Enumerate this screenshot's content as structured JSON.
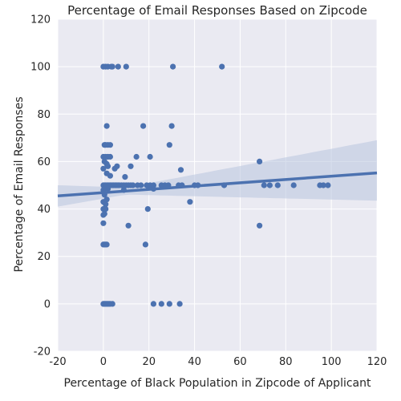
{
  "chart_data": {
    "type": "scatter",
    "title": "Percentage of Email Responses Based on Zipcode",
    "xlabel": "Percentage of Black Population in Zipcode of Applicant",
    "ylabel": "Percentage of Email Responses",
    "xlim": [
      -20,
      120
    ],
    "ylim": [
      -20,
      120
    ],
    "x_ticks": [
      "-20",
      "0",
      "20",
      "40",
      "60",
      "80",
      "100",
      "120"
    ],
    "y_ticks": [
      "-20",
      "0",
      "20",
      "40",
      "60",
      "80",
      "100",
      "120"
    ],
    "grid": true,
    "colors": {
      "background": "#eaeaf2",
      "grid": "#ffffff",
      "points": "#4c72b0",
      "band": "#b8c5df"
    },
    "points": [
      {
        "x": 0,
        "y": 100
      },
      {
        "x": 1,
        "y": 100
      },
      {
        "x": 2,
        "y": 100
      },
      {
        "x": 3.5,
        "y": 100
      },
      {
        "x": 4,
        "y": 100
      },
      {
        "x": 6.5,
        "y": 100
      },
      {
        "x": 10,
        "y": 100
      },
      {
        "x": 30.5,
        "y": 100
      },
      {
        "x": 52,
        "y": 100
      },
      {
        "x": 1.5,
        "y": 75
      },
      {
        "x": 17.5,
        "y": 75
      },
      {
        "x": 30,
        "y": 75
      },
      {
        "x": 0.5,
        "y": 67
      },
      {
        "x": 1,
        "y": 67
      },
      {
        "x": 2,
        "y": 67
      },
      {
        "x": 3,
        "y": 67
      },
      {
        "x": 29,
        "y": 67
      },
      {
        "x": 0,
        "y": 62
      },
      {
        "x": 1,
        "y": 62
      },
      {
        "x": 2,
        "y": 62
      },
      {
        "x": 3,
        "y": 62
      },
      {
        "x": 14.5,
        "y": 62
      },
      {
        "x": 20.5,
        "y": 62
      },
      {
        "x": 0.5,
        "y": 60
      },
      {
        "x": 1.5,
        "y": 59
      },
      {
        "x": 2,
        "y": 58
      },
      {
        "x": 6,
        "y": 58
      },
      {
        "x": 12,
        "y": 58
      },
      {
        "x": 68.5,
        "y": 60
      },
      {
        "x": 0,
        "y": 57
      },
      {
        "x": 5,
        "y": 57
      },
      {
        "x": 34,
        "y": 56.5
      },
      {
        "x": 1.5,
        "y": 55
      },
      {
        "x": 3,
        "y": 54
      },
      {
        "x": 9.5,
        "y": 53.5
      },
      {
        "x": 0,
        "y": 50
      },
      {
        "x": 0.5,
        "y": 50
      },
      {
        "x": 1,
        "y": 50
      },
      {
        "x": 1.5,
        "y": 50
      },
      {
        "x": 2,
        "y": 50
      },
      {
        "x": 2.5,
        "y": 50
      },
      {
        "x": 3,
        "y": 50
      },
      {
        "x": 3.5,
        "y": 50
      },
      {
        "x": 4,
        "y": 50
      },
      {
        "x": 4.5,
        "y": 50
      },
      {
        "x": 5,
        "y": 50
      },
      {
        "x": 5.5,
        "y": 50
      },
      {
        "x": 6,
        "y": 50
      },
      {
        "x": 6.5,
        "y": 50
      },
      {
        "x": 7,
        "y": 50
      },
      {
        "x": 8,
        "y": 50
      },
      {
        "x": 9,
        "y": 50
      },
      {
        "x": 10,
        "y": 50
      },
      {
        "x": 11,
        "y": 50
      },
      {
        "x": 12,
        "y": 50
      },
      {
        "x": 13,
        "y": 50
      },
      {
        "x": 15,
        "y": 50
      },
      {
        "x": 16.5,
        "y": 50
      },
      {
        "x": 19,
        "y": 50
      },
      {
        "x": 20.5,
        "y": 50
      },
      {
        "x": 22,
        "y": 50
      },
      {
        "x": 25.5,
        "y": 50
      },
      {
        "x": 27,
        "y": 50
      },
      {
        "x": 28.5,
        "y": 50
      },
      {
        "x": 33,
        "y": 50
      },
      {
        "x": 34.5,
        "y": 50
      },
      {
        "x": 40,
        "y": 50
      },
      {
        "x": 41.5,
        "y": 50
      },
      {
        "x": 53,
        "y": 50
      },
      {
        "x": 70.5,
        "y": 50
      },
      {
        "x": 73,
        "y": 50
      },
      {
        "x": 76.5,
        "y": 50
      },
      {
        "x": 83.5,
        "y": 50
      },
      {
        "x": 95,
        "y": 50
      },
      {
        "x": 96.5,
        "y": 50
      },
      {
        "x": 98.5,
        "y": 50
      },
      {
        "x": 0,
        "y": 48
      },
      {
        "x": 1,
        "y": 49
      },
      {
        "x": 2,
        "y": 48.5
      },
      {
        "x": 9,
        "y": 48
      },
      {
        "x": 20,
        "y": 49
      },
      {
        "x": 22,
        "y": 48.5
      },
      {
        "x": 0.5,
        "y": 46
      },
      {
        "x": 1.5,
        "y": 44
      },
      {
        "x": 0,
        "y": 43
      },
      {
        "x": 1,
        "y": 42
      },
      {
        "x": 38,
        "y": 43
      },
      {
        "x": 0,
        "y": 40
      },
      {
        "x": 1,
        "y": 40
      },
      {
        "x": 19.5,
        "y": 40
      },
      {
        "x": 0,
        "y": 37.5
      },
      {
        "x": 0.5,
        "y": 38
      },
      {
        "x": 0,
        "y": 34
      },
      {
        "x": 11,
        "y": 33
      },
      {
        "x": 68.5,
        "y": 33
      },
      {
        "x": 0,
        "y": 25
      },
      {
        "x": 0.5,
        "y": 25
      },
      {
        "x": 1,
        "y": 25
      },
      {
        "x": 1.5,
        "y": 25
      },
      {
        "x": 18.5,
        "y": 25
      },
      {
        "x": 0,
        "y": 0
      },
      {
        "x": 0.5,
        "y": 0
      },
      {
        "x": 1,
        "y": 0
      },
      {
        "x": 1.5,
        "y": 0
      },
      {
        "x": 2,
        "y": 0
      },
      {
        "x": 2.5,
        "y": 0
      },
      {
        "x": 3,
        "y": 0
      },
      {
        "x": 4,
        "y": 0
      },
      {
        "x": 22,
        "y": 0
      },
      {
        "x": 25.5,
        "y": 0
      },
      {
        "x": 29,
        "y": 0
      },
      {
        "x": 33.5,
        "y": 0
      }
    ],
    "regression": {
      "x": [
        -20,
        120
      ],
      "y": [
        45.5,
        55.2
      ],
      "ci_lower": [
        41,
        43.5
      ],
      "ci_upper": [
        50,
        69
      ]
    }
  }
}
